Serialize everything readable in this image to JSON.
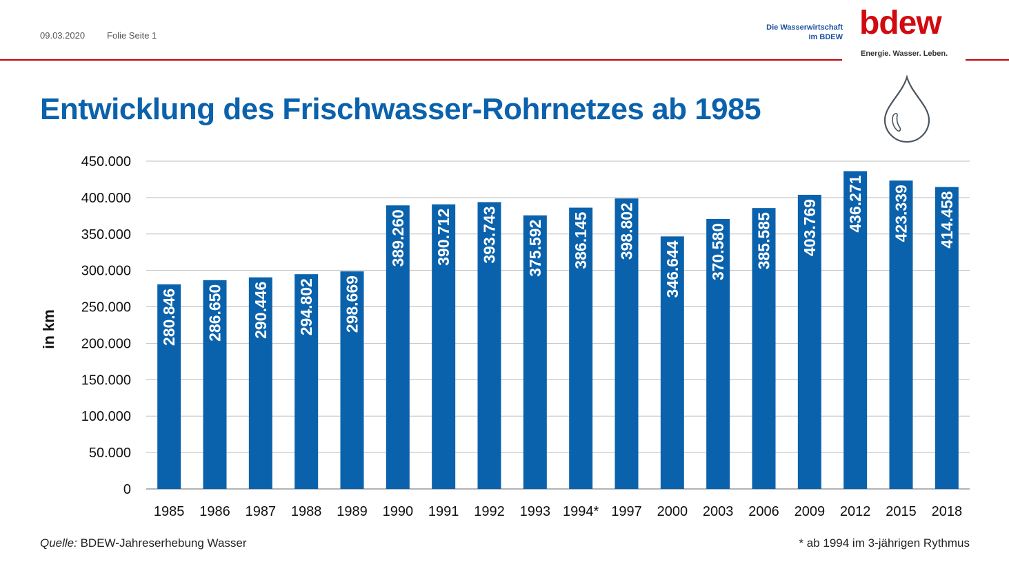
{
  "header": {
    "date": "09.03.2020",
    "slide_label": "Folie Seite 1",
    "org_line1": "Die Wasserwirtschaft",
    "org_line2": "im BDEW",
    "logo_text": "bdew",
    "logo_tagline": "Energie. Wasser. Leben."
  },
  "colors": {
    "bar": "#0b62ac",
    "title": "#0b62ac",
    "accent_rule": "#c00000",
    "logo": "#d10a10"
  },
  "chart_data": {
    "type": "bar",
    "title": "Entwicklung des Frischwasser-Rohrnetzes ab 1985",
    "ylabel": "in km",
    "xlabel": "",
    "ylim": [
      0,
      450000
    ],
    "ytick_step": 50000,
    "yticks": [
      "0",
      "50.000",
      "100.000",
      "150.000",
      "200.000",
      "250.000",
      "300.000",
      "350.000",
      "400.000",
      "450.000"
    ],
    "grid": true,
    "categories": [
      "1985",
      "1986",
      "1987",
      "1988",
      "1989",
      "1990",
      "1991",
      "1992",
      "1993",
      "1994*",
      "1997",
      "2000",
      "2003",
      "2006",
      "2009",
      "2012",
      "2015",
      "2018"
    ],
    "values": [
      280846,
      286650,
      290446,
      294802,
      298669,
      389260,
      390712,
      393743,
      375592,
      386145,
      398802,
      346644,
      370580,
      385585,
      403769,
      436271,
      423339,
      414458
    ],
    "data_labels": [
      "280.846",
      "286.650",
      "290.446",
      "294.802",
      "298.669",
      "389.260",
      "390.712",
      "393.743",
      "375.592",
      "386.145",
      "398.802",
      "346.644",
      "370.580",
      "385.585",
      "403.769",
      "436.271",
      "423.339",
      "414.458"
    ]
  },
  "footer": {
    "source_label": "Quelle:",
    "source_text": " BDEW-Jahreserhebung Wasser",
    "footnote": "* ab 1994 im 3-jährigen Rythmus"
  }
}
